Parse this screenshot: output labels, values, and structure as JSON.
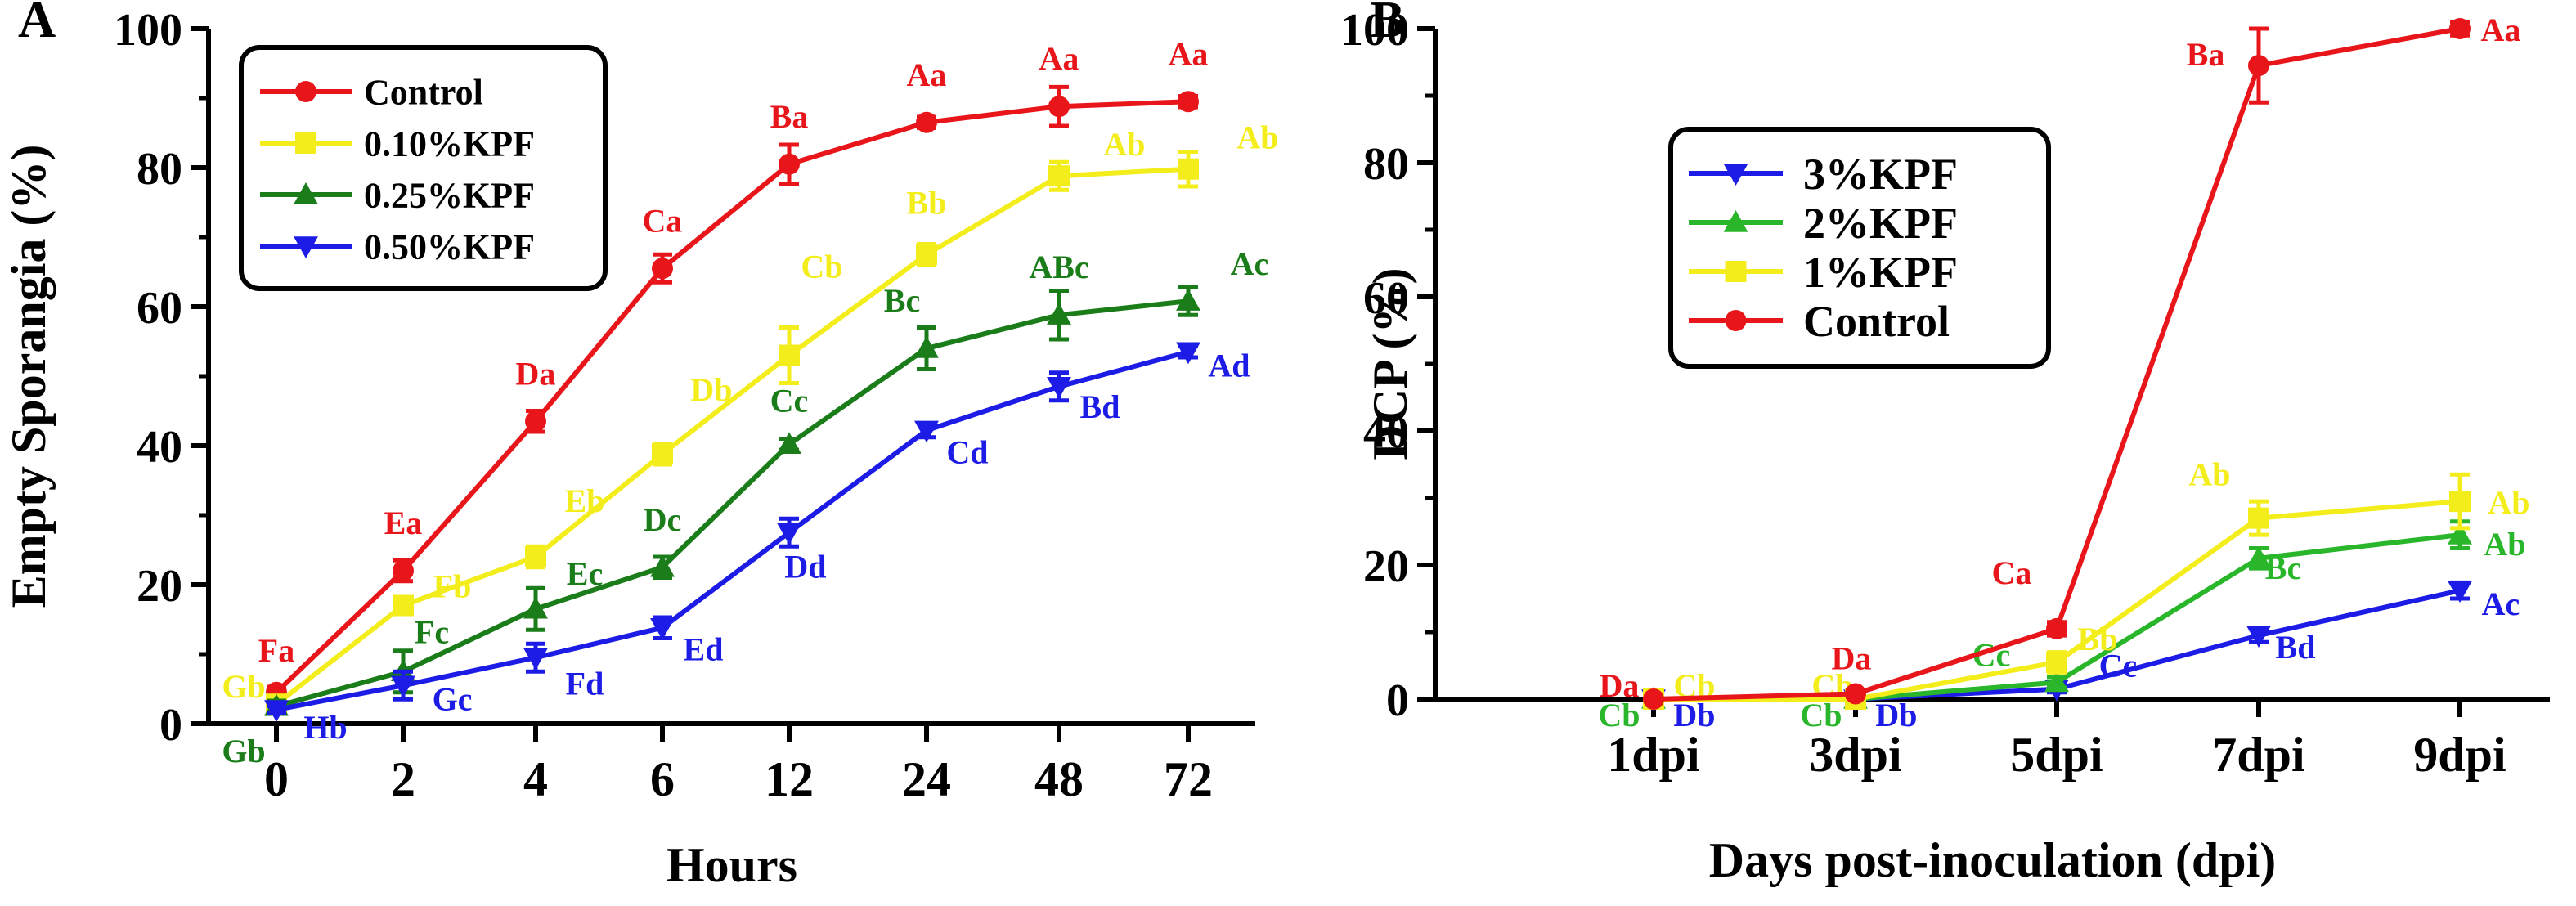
{
  "chart_data": [
    {
      "panel": "A",
      "type": "line",
      "categories": [
        "0",
        "2",
        "4",
        "6",
        "12",
        "24",
        "48",
        "72"
      ],
      "xlabel": "Hours",
      "ylabel": "Empty Sporangia (%)",
      "ylim": [
        0,
        100
      ],
      "yticks": [
        "0",
        "20",
        "40",
        "60",
        "80",
        "100"
      ],
      "legend_position": "top-left",
      "series": [
        {
          "name": "Control",
          "color": "#e8161b",
          "marker": "circle",
          "values": [
            4.5,
            22,
            43.5,
            65.5,
            80.5,
            86.5,
            88.8,
            89.5
          ],
          "errors": [
            0.8,
            1.5,
            1.5,
            2.0,
            2.8,
            0.8,
            2.8,
            0.8
          ],
          "labels": [
            "Fa",
            "Ea",
            "Da",
            "Ca",
            "Ba",
            "Aa",
            "Aa",
            "Aa"
          ]
        },
        {
          "name": "0.10%KPF",
          "color": "#f4ed1c",
          "marker": "square",
          "values": [
            2.8,
            17,
            24,
            38.8,
            53,
            67.5,
            78.8,
            79.8
          ],
          "errors": [
            0.8,
            1.0,
            1.5,
            1.5,
            4.0,
            1.5,
            2.0,
            2.5
          ],
          "labels": [
            "Gb",
            "Fb",
            "Eb",
            "Db",
            "Cb",
            "Bb",
            "Ab",
            "Ab"
          ]
        },
        {
          "name": "0.25%KPF",
          "color": "#1a7d1a",
          "marker": "triangle-up",
          "values": [
            2.5,
            7.5,
            16.5,
            22.5,
            40.2,
            54,
            58.8,
            60.8
          ],
          "errors": [
            0.8,
            3.0,
            3.0,
            1.5,
            0.8,
            3.0,
            3.5,
            2.0
          ],
          "labels": [
            "Gb",
            "Fc",
            "Ec",
            "Dc",
            "Cc",
            "Bc",
            "ABc",
            "Ac"
          ]
        },
        {
          "name": "0.50%KPF",
          "color": "#1c1ce6",
          "marker": "triangle-down",
          "values": [
            2.0,
            5.5,
            9.5,
            13.8,
            27.5,
            42.2,
            48.5,
            53.5
          ],
          "errors": [
            0.5,
            2.0,
            2.0,
            1.5,
            2.0,
            1.0,
            2.0,
            0.8
          ],
          "labels": [
            "Hb",
            "Gc",
            "Fd",
            "Ed",
            "Dd",
            "Cd",
            "Bd",
            "Ad"
          ]
        }
      ]
    },
    {
      "panel": "B",
      "type": "line",
      "categories": [
        "1dpi",
        "3dpi",
        "5dpi",
        "7dpi",
        "9dpi"
      ],
      "xlabel": "Days post-inoculation (dpi)",
      "ylabel": "DCP (%)",
      "ylim": [
        0,
        100
      ],
      "yticks": [
        "0",
        "20",
        "40",
        "60",
        "80",
        "100"
      ],
      "legend_position": "center-left",
      "series": [
        {
          "name": "3%KPF",
          "color": "#1c1ce6",
          "marker": "triangle-down",
          "values": [
            0,
            0,
            1.5,
            9.5,
            16.2
          ],
          "errors": [
            0,
            0,
            0.5,
            1.0,
            1.2
          ],
          "labels": [
            "Db",
            "Db",
            "Cc",
            "Bd",
            "Ac"
          ]
        },
        {
          "name": "2%KPF",
          "color": "#2ab62a",
          "marker": "triangle-up",
          "values": [
            0,
            0,
            2.5,
            21,
            24.5
          ],
          "errors": [
            0,
            0,
            0.8,
            1.5,
            2.0
          ],
          "labels": [
            "Cb",
            "Cb",
            "Cc",
            "Bc",
            "Ab"
          ]
        },
        {
          "name": "1%KPF",
          "color": "#f4ed1c",
          "marker": "square",
          "values": [
            0,
            0,
            5.5,
            27,
            29.5
          ],
          "errors": [
            0,
            0,
            1.5,
            2.5,
            4.0
          ],
          "labels": [
            "Cb",
            "Cb",
            "Bb",
            "Ab",
            "Ab"
          ]
        },
        {
          "name": "Control",
          "color": "#e8161b",
          "marker": "circle",
          "values": [
            0,
            0.8,
            10.5,
            94.5,
            100
          ],
          "errors": [
            0,
            0.5,
            1.0,
            5.5,
            1.0
          ],
          "labels": [
            "Da",
            "Da",
            "Ca",
            "Ba",
            "Aa"
          ]
        }
      ]
    }
  ]
}
